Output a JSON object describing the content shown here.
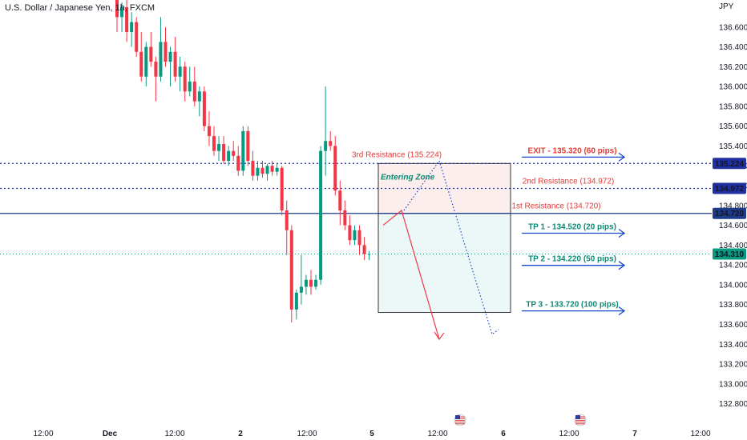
{
  "header": {
    "symbol_title": "U.S. Dollar / Japanese Yen, 1h, FXCM",
    "currency": "JPY"
  },
  "colors": {
    "up": "#089981",
    "down": "#f23645",
    "blue_line": "#1e3a8a",
    "arrow_blue": "#1848cc",
    "teal_text": "#0c8a73",
    "red_text": "#e53935",
    "zone_fill": "#fdeeee",
    "tp_fill": "#ecf8f8",
    "axis_text": "#131722"
  },
  "chart_data": {
    "type": "candlestick",
    "ylim": [
      132.7,
      136.8
    ],
    "y_ticks": [
      132.8,
      133.0,
      133.2,
      133.4,
      133.6,
      133.8,
      134.0,
      134.2,
      134.4,
      134.6,
      134.8,
      135.0,
      135.2,
      135.4,
      135.6,
      135.8,
      136.0,
      136.2,
      136.4,
      136.6
    ],
    "x_ticks": [
      "12:00",
      "Dec",
      "12:00",
      "2",
      "12:00",
      "5",
      "12:00",
      "6",
      "12:00",
      "7",
      "12:00"
    ],
    "candles": [
      {
        "o": 136.95,
        "h": 137.05,
        "l": 136.55,
        "c": 136.7
      },
      {
        "o": 136.7,
        "h": 136.85,
        "l": 136.55,
        "c": 136.8
      },
      {
        "o": 136.8,
        "h": 136.9,
        "l": 136.45,
        "c": 136.55
      },
      {
        "o": 136.55,
        "h": 136.75,
        "l": 136.4,
        "c": 136.65
      },
      {
        "o": 136.65,
        "h": 136.7,
        "l": 136.3,
        "c": 136.35
      },
      {
        "o": 136.35,
        "h": 136.55,
        "l": 136.05,
        "c": 136.1
      },
      {
        "o": 136.1,
        "h": 136.45,
        "l": 136.0,
        "c": 136.4
      },
      {
        "o": 136.4,
        "h": 136.55,
        "l": 136.2,
        "c": 136.25
      },
      {
        "o": 136.25,
        "h": 136.3,
        "l": 135.85,
        "c": 136.1
      },
      {
        "o": 136.1,
        "h": 136.7,
        "l": 136.05,
        "c": 136.45
      },
      {
        "o": 136.45,
        "h": 136.6,
        "l": 136.2,
        "c": 136.25
      },
      {
        "o": 136.25,
        "h": 136.4,
        "l": 136.0,
        "c": 136.35
      },
      {
        "o": 136.35,
        "h": 136.5,
        "l": 136.05,
        "c": 136.1
      },
      {
        "o": 136.1,
        "h": 136.3,
        "l": 135.95,
        "c": 136.2
      },
      {
        "o": 136.2,
        "h": 136.25,
        "l": 135.85,
        "c": 135.95
      },
      {
        "o": 135.95,
        "h": 136.2,
        "l": 135.9,
        "c": 136.05
      },
      {
        "o": 136.05,
        "h": 136.2,
        "l": 135.8,
        "c": 135.85
      },
      {
        "o": 135.85,
        "h": 136.0,
        "l": 135.7,
        "c": 135.95
      },
      {
        "o": 135.95,
        "h": 136.0,
        "l": 135.55,
        "c": 135.6
      },
      {
        "o": 135.6,
        "h": 135.75,
        "l": 135.4,
        "c": 135.5
      },
      {
        "o": 135.5,
        "h": 135.6,
        "l": 135.3,
        "c": 135.35
      },
      {
        "o": 135.35,
        "h": 135.5,
        "l": 135.25,
        "c": 135.42
      },
      {
        "o": 135.42,
        "h": 135.5,
        "l": 135.22,
        "c": 135.25
      },
      {
        "o": 135.25,
        "h": 135.4,
        "l": 135.2,
        "c": 135.35
      },
      {
        "o": 135.35,
        "h": 135.45,
        "l": 135.25,
        "c": 135.3
      },
      {
        "o": 135.3,
        "h": 135.4,
        "l": 135.1,
        "c": 135.15
      },
      {
        "o": 135.15,
        "h": 135.6,
        "l": 135.1,
        "c": 135.55
      },
      {
        "o": 135.55,
        "h": 135.6,
        "l": 135.2,
        "c": 135.25
      },
      {
        "o": 135.25,
        "h": 135.35,
        "l": 135.05,
        "c": 135.1
      },
      {
        "o": 135.1,
        "h": 135.25,
        "l": 135.05,
        "c": 135.18
      },
      {
        "o": 135.18,
        "h": 135.25,
        "l": 135.08,
        "c": 135.12
      },
      {
        "o": 135.12,
        "h": 135.22,
        "l": 135.05,
        "c": 135.2
      },
      {
        "o": 135.2,
        "h": 135.25,
        "l": 135.1,
        "c": 135.14
      },
      {
        "o": 135.14,
        "h": 135.22,
        "l": 135.1,
        "c": 135.18
      },
      {
        "o": 135.18,
        "h": 135.2,
        "l": 134.7,
        "c": 134.75
      },
      {
        "o": 134.75,
        "h": 134.85,
        "l": 134.3,
        "c": 134.55
      },
      {
        "o": 134.55,
        "h": 134.6,
        "l": 133.62,
        "c": 133.75
      },
      {
        "o": 133.75,
        "h": 133.95,
        "l": 133.65,
        "c": 133.92
      },
      {
        "o": 133.92,
        "h": 134.3,
        "l": 133.8,
        "c": 133.98
      },
      {
        "o": 133.98,
        "h": 134.1,
        "l": 133.9,
        "c": 134.05
      },
      {
        "o": 134.05,
        "h": 134.15,
        "l": 133.9,
        "c": 133.98
      },
      {
        "o": 133.98,
        "h": 134.1,
        "l": 133.95,
        "c": 134.05
      },
      {
        "o": 134.05,
        "h": 135.4,
        "l": 134.0,
        "c": 135.35
      },
      {
        "o": 135.35,
        "h": 136.0,
        "l": 135.1,
        "c": 135.45
      },
      {
        "o": 135.45,
        "h": 135.55,
        "l": 135.35,
        "c": 135.4
      },
      {
        "o": 135.4,
        "h": 135.5,
        "l": 134.9,
        "c": 134.95
      },
      {
        "o": 134.95,
        "h": 135.05,
        "l": 134.6,
        "c": 134.75
      },
      {
        "o": 134.75,
        "h": 134.85,
        "l": 134.55,
        "c": 134.6
      },
      {
        "o": 134.6,
        "h": 134.7,
        "l": 134.4,
        "c": 134.45
      },
      {
        "o": 134.45,
        "h": 134.6,
        "l": 134.4,
        "c": 134.55
      },
      {
        "o": 134.55,
        "h": 134.6,
        "l": 134.3,
        "c": 134.4
      },
      {
        "o": 134.4,
        "h": 134.48,
        "l": 134.25,
        "c": 134.31
      },
      {
        "o": 134.31,
        "h": 134.34,
        "l": 134.25,
        "c": 134.31
      }
    ],
    "levels": [
      {
        "name": "3rd Resistance",
        "value": 135.224,
        "label": "135.224",
        "style": "dotted"
      },
      {
        "name": "2nd Resistance",
        "value": 134.972,
        "label": "134.972",
        "style": "dotted"
      },
      {
        "name": "1st Resistance",
        "value": 134.72,
        "label": "134.720",
        "style": "solid"
      },
      {
        "name": "Last Price",
        "value": 134.31,
        "label": "134.310",
        "style": "dotted-green"
      }
    ],
    "entering_zone": {
      "y_top": 135.224,
      "y_bottom": 134.72
    },
    "tp_zone": {
      "y_top": 134.72,
      "y_bottom": 133.72
    },
    "annotations": {
      "res3": "3rd Resistance (135.224)",
      "res2": "2nd Resistance (134.972)",
      "res1": "1st Resistance (134.720)",
      "entering_zone": "Entering Zone",
      "exit": "EXIT - 135.320 (60 pips)",
      "tp1": "TP 1 - 134.520 (20 pips)",
      "tp2": "TP 2 - 134.220 (50 pips)",
      "tp3": "TP 3 - 133.720 (100 pips)"
    },
    "targets": {
      "exit": 135.32,
      "tp1": 134.52,
      "tp2": 134.22,
      "tp3": 133.72
    },
    "projection_red": [
      134.6,
      134.75,
      133.45
    ],
    "projection_blue": [
      134.75,
      135.25,
      133.5,
      133.55
    ]
  }
}
